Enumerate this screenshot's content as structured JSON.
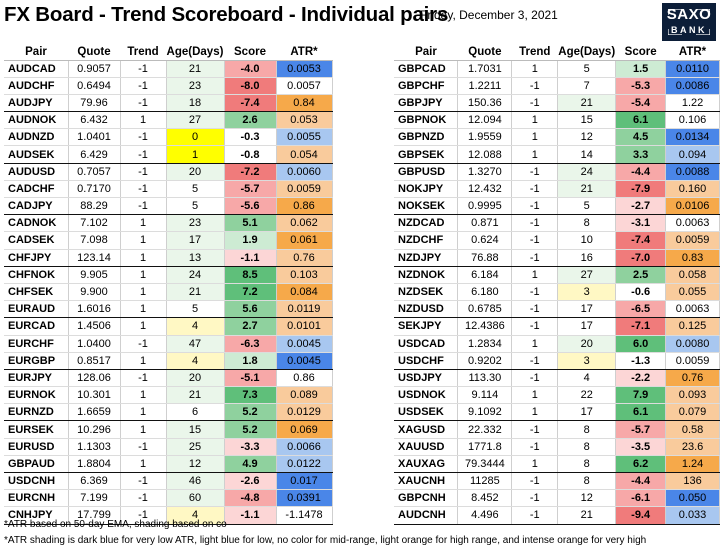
{
  "header": {
    "title": "FX Board - Trend Scoreboard - Individual pairs",
    "date": "Friday, December 3, 2021",
    "logo_top": "SAXO",
    "logo_bottom": "BANK"
  },
  "columns": [
    "Pair",
    "Quote",
    "Trend",
    "Age(Days)",
    "Score",
    "ATR*"
  ],
  "colors": {
    "score_pos_strong": "#5fbf7a",
    "score_pos_mid": "#8fd19e",
    "score_pos_light": "#cdebd3",
    "score_neg_strong": "#f07b7b",
    "score_neg_mid": "#f7a8a8",
    "score_neg_light": "#fcd6d6",
    "age_yellow": "#ffff00",
    "age_light": "#eaf6ea",
    "age_cream": "#fff8c4",
    "atr_dark_blue": "#4a86e8",
    "atr_light_blue": "#a8c7f0",
    "atr_orange_light": "#f9cb9c",
    "atr_orange": "#f6a94a"
  },
  "left_groups": [
    [
      {
        "pair": "AUDCAD",
        "quote": "0.9057",
        "trend": "-1",
        "age": "21",
        "score": "-4.0",
        "atr": "0.0053",
        "age_color": "age_light",
        "score_color": "score_neg_mid",
        "atr_color": "atr_dark_blue"
      },
      {
        "pair": "AUDCHF",
        "quote": "0.6494",
        "trend": "-1",
        "age": "23",
        "score": "-8.0",
        "atr": "0.0057",
        "age_color": "age_light",
        "score_color": "score_neg_strong",
        "atr_color": ""
      },
      {
        "pair": "AUDJPY",
        "quote": "79.96",
        "trend": "-1",
        "age": "18",
        "score": "-7.4",
        "atr": "0.84",
        "age_color": "age_light",
        "score_color": "score_neg_strong",
        "atr_color": "atr_orange"
      }
    ],
    [
      {
        "pair": "AUDNOK",
        "quote": "6.432",
        "trend": "1",
        "age": "27",
        "score": "2.6",
        "atr": "0.053",
        "age_color": "age_light",
        "score_color": "score_pos_mid",
        "atr_color": "atr_orange_light"
      },
      {
        "pair": "AUDNZD",
        "quote": "1.0401",
        "trend": "-1",
        "age": "0",
        "score": "-0.3",
        "atr": "0.0055",
        "age_color": "age_yellow",
        "score_color": "",
        "atr_color": "atr_light_blue"
      },
      {
        "pair": "AUDSEK",
        "quote": "6.429",
        "trend": "-1",
        "age": "1",
        "score": "-0.8",
        "atr": "0.054",
        "age_color": "age_yellow",
        "score_color": "",
        "atr_color": "atr_orange_light"
      }
    ],
    [
      {
        "pair": "AUDUSD",
        "quote": "0.7057",
        "trend": "-1",
        "age": "20",
        "score": "-7.2",
        "atr": "0.0060",
        "age_color": "age_light",
        "score_color": "score_neg_strong",
        "atr_color": "atr_light_blue"
      },
      {
        "pair": "CADCHF",
        "quote": "0.7170",
        "trend": "-1",
        "age": "5",
        "score": "-5.7",
        "atr": "0.0059",
        "age_color": "",
        "score_color": "score_neg_mid",
        "atr_color": "atr_orange_light"
      },
      {
        "pair": "CADJPY",
        "quote": "88.29",
        "trend": "-1",
        "age": "5",
        "score": "-5.6",
        "atr": "0.86",
        "age_color": "",
        "score_color": "score_neg_mid",
        "atr_color": "atr_orange"
      }
    ],
    [
      {
        "pair": "CADNOK",
        "quote": "7.102",
        "trend": "1",
        "age": "23",
        "score": "5.1",
        "atr": "0.062",
        "age_color": "age_light",
        "score_color": "score_pos_mid",
        "atr_color": "atr_orange_light"
      },
      {
        "pair": "CADSEK",
        "quote": "7.098",
        "trend": "1",
        "age": "17",
        "score": "1.9",
        "atr": "0.061",
        "age_color": "age_light",
        "score_color": "score_pos_light",
        "atr_color": "atr_orange"
      },
      {
        "pair": "CHFJPY",
        "quote": "123.14",
        "trend": "1",
        "age": "13",
        "score": "-1.1",
        "atr": "0.76",
        "age_color": "age_light",
        "score_color": "score_neg_light",
        "atr_color": "atr_orange_light"
      }
    ],
    [
      {
        "pair": "CHFNOK",
        "quote": "9.905",
        "trend": "1",
        "age": "24",
        "score": "8.5",
        "atr": "0.103",
        "age_color": "age_light",
        "score_color": "score_pos_strong",
        "atr_color": "atr_orange_light"
      },
      {
        "pair": "CHFSEK",
        "quote": "9.900",
        "trend": "1",
        "age": "21",
        "score": "7.2",
        "atr": "0.084",
        "age_color": "age_light",
        "score_color": "score_pos_strong",
        "atr_color": "atr_orange"
      },
      {
        "pair": "EURAUD",
        "quote": "1.6016",
        "trend": "1",
        "age": "5",
        "score": "5.6",
        "atr": "0.0119",
        "age_color": "",
        "score_color": "score_pos_mid",
        "atr_color": "atr_orange_light"
      }
    ],
    [
      {
        "pair": "EURCAD",
        "quote": "1.4506",
        "trend": "1",
        "age": "4",
        "score": "2.7",
        "atr": "0.0101",
        "age_color": "age_cream",
        "score_color": "score_pos_mid",
        "atr_color": "atr_orange_light"
      },
      {
        "pair": "EURCHF",
        "quote": "1.0400",
        "trend": "-1",
        "age": "47",
        "score": "-6.3",
        "atr": "0.0045",
        "age_color": "age_light",
        "score_color": "score_neg_mid",
        "atr_color": "atr_light_blue"
      },
      {
        "pair": "EURGBP",
        "quote": "0.8517",
        "trend": "1",
        "age": "4",
        "score": "1.8",
        "atr": "0.0045",
        "age_color": "age_cream",
        "score_color": "score_pos_light",
        "atr_color": "atr_dark_blue"
      }
    ],
    [
      {
        "pair": "EURJPY",
        "quote": "128.06",
        "trend": "-1",
        "age": "20",
        "score": "-5.1",
        "atr": "0.86",
        "age_color": "age_light",
        "score_color": "score_neg_mid",
        "atr_color": ""
      },
      {
        "pair": "EURNOK",
        "quote": "10.301",
        "trend": "1",
        "age": "21",
        "score": "7.3",
        "atr": "0.089",
        "age_color": "age_light",
        "score_color": "score_pos_strong",
        "atr_color": "atr_orange_light"
      },
      {
        "pair": "EURNZD",
        "quote": "1.6659",
        "trend": "1",
        "age": "6",
        "score": "5.2",
        "atr": "0.0129",
        "age_color": "",
        "score_color": "score_pos_mid",
        "atr_color": "atr_orange_light"
      }
    ],
    [
      {
        "pair": "EURSEK",
        "quote": "10.296",
        "trend": "1",
        "age": "15",
        "score": "5.2",
        "atr": "0.069",
        "age_color": "age_light",
        "score_color": "score_pos_mid",
        "atr_color": "atr_orange"
      },
      {
        "pair": "EURUSD",
        "quote": "1.1303",
        "trend": "-1",
        "age": "25",
        "score": "-3.3",
        "atr": "0.0066",
        "age_color": "age_light",
        "score_color": "score_neg_light",
        "atr_color": "atr_light_blue"
      },
      {
        "pair": "GBPAUD",
        "quote": "1.8804",
        "trend": "1",
        "age": "12",
        "score": "4.9",
        "atr": "0.0122",
        "age_color": "age_light",
        "score_color": "score_pos_mid",
        "atr_color": "atr_light_blue"
      }
    ],
    [
      {
        "pair": "USDCNH",
        "quote": "6.369",
        "trend": "-1",
        "age": "46",
        "score": "-2.6",
        "atr": "0.017",
        "age_color": "age_light",
        "score_color": "score_neg_light",
        "atr_color": "atr_dark_blue"
      },
      {
        "pair": "EURCNH",
        "quote": "7.199",
        "trend": "-1",
        "age": "60",
        "score": "-4.8",
        "atr": "0.0391",
        "age_color": "age_light",
        "score_color": "score_neg_mid",
        "atr_color": "atr_dark_blue"
      },
      {
        "pair": "CNHJPY",
        "quote": "17.799",
        "trend": "-1",
        "age": "4",
        "score": "-1.1",
        "atr": "-1.1478",
        "age_color": "age_cream",
        "score_color": "score_neg_light",
        "atr_color": ""
      }
    ]
  ],
  "right_groups": [
    [
      {
        "pair": "GBPCAD",
        "quote": "1.7031",
        "trend": "1",
        "age": "5",
        "score": "1.5",
        "atr": "0.0110",
        "age_color": "",
        "score_color": "score_pos_light",
        "atr_color": "atr_dark_blue"
      },
      {
        "pair": "GBPCHF",
        "quote": "1.2211",
        "trend": "-1",
        "age": "7",
        "score": "-5.3",
        "atr": "0.0086",
        "age_color": "",
        "score_color": "score_neg_mid",
        "atr_color": "atr_dark_blue"
      },
      {
        "pair": "GBPJPY",
        "quote": "150.36",
        "trend": "-1",
        "age": "21",
        "score": "-5.4",
        "atr": "1.22",
        "age_color": "age_light",
        "score_color": "score_neg_mid",
        "atr_color": ""
      }
    ],
    [
      {
        "pair": "GBPNOK",
        "quote": "12.094",
        "trend": "1",
        "age": "15",
        "score": "6.1",
        "atr": "0.106",
        "age_color": "",
        "score_color": "score_pos_strong",
        "atr_color": ""
      },
      {
        "pair": "GBPNZD",
        "quote": "1.9559",
        "trend": "1",
        "age": "12",
        "score": "4.5",
        "atr": "0.0134",
        "age_color": "",
        "score_color": "score_pos_mid",
        "atr_color": "atr_dark_blue"
      },
      {
        "pair": "GBPSEK",
        "quote": "12.088",
        "trend": "1",
        "age": "14",
        "score": "3.3",
        "atr": "0.094",
        "age_color": "",
        "score_color": "score_pos_mid",
        "atr_color": "atr_light_blue"
      }
    ],
    [
      {
        "pair": "GBPUSD",
        "quote": "1.3270",
        "trend": "-1",
        "age": "24",
        "score": "-4.4",
        "atr": "0.0088",
        "age_color": "age_light",
        "score_color": "score_neg_mid",
        "atr_color": "atr_dark_blue"
      },
      {
        "pair": "NOKJPY",
        "quote": "12.432",
        "trend": "-1",
        "age": "21",
        "score": "-7.9",
        "atr": "0.160",
        "age_color": "age_light",
        "score_color": "score_neg_strong",
        "atr_color": "atr_orange_light"
      },
      {
        "pair": "NOKSEK",
        "quote": "0.9995",
        "trend": "-1",
        "age": "5",
        "score": "-2.7",
        "atr": "0.0106",
        "age_color": "",
        "score_color": "score_neg_light",
        "atr_color": "atr_orange"
      }
    ],
    [
      {
        "pair": "NZDCAD",
        "quote": "0.871",
        "trend": "-1",
        "age": "8",
        "score": "-3.1",
        "atr": "0.0063",
        "age_color": "",
        "score_color": "score_neg_light",
        "atr_color": ""
      },
      {
        "pair": "NZDCHF",
        "quote": "0.624",
        "trend": "-1",
        "age": "10",
        "score": "-7.4",
        "atr": "0.0059",
        "age_color": "",
        "score_color": "score_neg_strong",
        "atr_color": "atr_orange_light"
      },
      {
        "pair": "NZDJPY",
        "quote": "76.88",
        "trend": "-1",
        "age": "16",
        "score": "-7.0",
        "atr": "0.83",
        "age_color": "",
        "score_color": "score_neg_strong",
        "atr_color": "atr_orange"
      }
    ],
    [
      {
        "pair": "NZDNOK",
        "quote": "6.184",
        "trend": "1",
        "age": "27",
        "score": "2.5",
        "atr": "0.058",
        "age_color": "age_light",
        "score_color": "score_pos_mid",
        "atr_color": "atr_orange_light"
      },
      {
        "pair": "NZDSEK",
        "quote": "6.180",
        "trend": "-1",
        "age": "3",
        "score": "-0.6",
        "atr": "0.055",
        "age_color": "age_cream",
        "score_color": "",
        "atr_color": "atr_orange_light"
      },
      {
        "pair": "NZDUSD",
        "quote": "0.6785",
        "trend": "-1",
        "age": "17",
        "score": "-6.5",
        "atr": "0.0063",
        "age_color": "",
        "score_color": "score_neg_mid",
        "atr_color": ""
      }
    ],
    [
      {
        "pair": "SEKJPY",
        "quote": "12.4386",
        "trend": "-1",
        "age": "17",
        "score": "-7.1",
        "atr": "0.125",
        "age_color": "",
        "score_color": "score_neg_strong",
        "atr_color": "atr_orange_light"
      },
      {
        "pair": "USDCAD",
        "quote": "1.2834",
        "trend": "1",
        "age": "20",
        "score": "6.0",
        "atr": "0.0080",
        "age_color": "age_light",
        "score_color": "score_pos_strong",
        "atr_color": "atr_light_blue"
      },
      {
        "pair": "USDCHF",
        "quote": "0.9202",
        "trend": "-1",
        "age": "3",
        "score": "-1.3",
        "atr": "0.0059",
        "age_color": "age_cream",
        "score_color": "",
        "atr_color": ""
      }
    ],
    [
      {
        "pair": "USDJPY",
        "quote": "113.30",
        "trend": "-1",
        "age": "4",
        "score": "-2.2",
        "atr": "0.76",
        "age_color": "",
        "score_color": "score_neg_light",
        "atr_color": "atr_orange"
      },
      {
        "pair": "USDNOK",
        "quote": "9.114",
        "trend": "1",
        "age": "22",
        "score": "7.9",
        "atr": "0.093",
        "age_color": "",
        "score_color": "score_pos_strong",
        "atr_color": "atr_orange_light"
      },
      {
        "pair": "USDSEK",
        "quote": "9.1092",
        "trend": "1",
        "age": "17",
        "score": "6.1",
        "atr": "0.079",
        "age_color": "",
        "score_color": "score_pos_strong",
        "atr_color": "atr_orange_light"
      }
    ],
    [
      {
        "pair": "XAGUSD",
        "quote": "22.332",
        "trend": "-1",
        "age": "8",
        "score": "-5.7",
        "atr": "0.58",
        "age_color": "",
        "score_color": "score_neg_mid",
        "atr_color": "atr_orange_light"
      },
      {
        "pair": "XAUUSD",
        "quote": "1771.8",
        "trend": "-1",
        "age": "8",
        "score": "-3.5",
        "atr": "23.6",
        "age_color": "",
        "score_color": "score_neg_light",
        "atr_color": "atr_orange_light"
      },
      {
        "pair": "XAUXAG",
        "quote": "79.3444",
        "trend": "1",
        "age": "8",
        "score": "6.2",
        "atr": "1.24",
        "age_color": "",
        "score_color": "score_pos_strong",
        "atr_color": "atr_orange"
      }
    ],
    [
      {
        "pair": "XAUCNH",
        "quote": "11285",
        "trend": "-1",
        "age": "8",
        "score": "-4.4",
        "atr": "136",
        "age_color": "",
        "score_color": "score_neg_mid",
        "atr_color": "atr_orange_light"
      },
      {
        "pair": "GBPCNH",
        "quote": "8.452",
        "trend": "-1",
        "age": "12",
        "score": "-6.1",
        "atr": "0.050",
        "age_color": "",
        "score_color": "score_neg_mid",
        "atr_color": "atr_dark_blue"
      },
      {
        "pair": "AUDCNH",
        "quote": "4.496",
        "trend": "-1",
        "age": "21",
        "score": "-9.4",
        "atr": "0.033",
        "age_color": "",
        "score_color": "score_neg_strong",
        "atr_color": "atr_light_blue"
      }
    ]
  ],
  "footer": {
    "note1": "*ATR based on 50-day EMA, shading based on co",
    "note2": "*ATR shading is dark blue for very low ATR, light blue for low, no color for mid-range, light orange for high range, and intense orange for very high"
  }
}
